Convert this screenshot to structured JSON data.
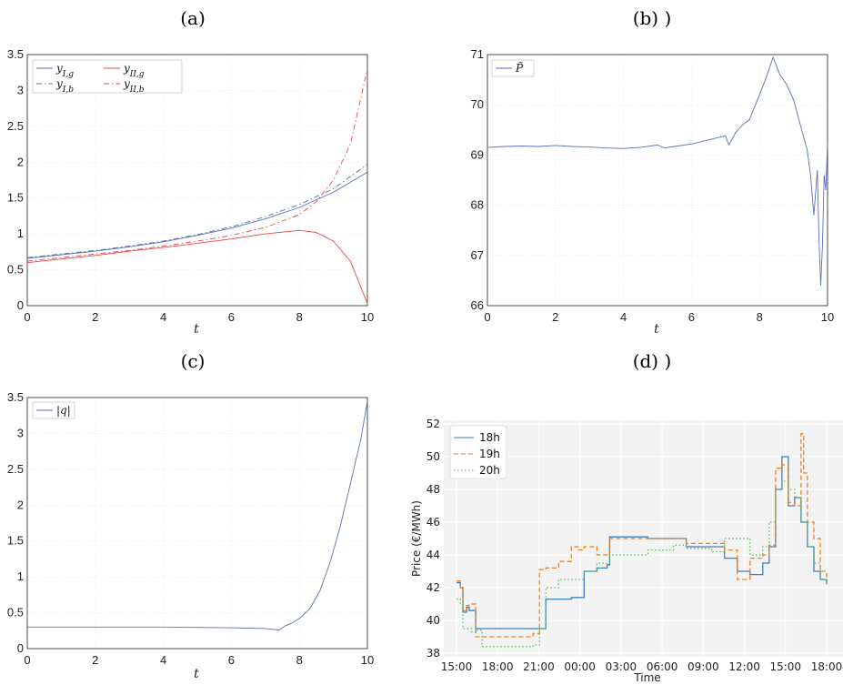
{
  "chart_data": [
    {
      "id": "a",
      "type": "line",
      "title": "(a)",
      "xlabel": "t",
      "ylabel": "",
      "xlim": [
        0,
        10
      ],
      "ylim": [
        0,
        3.5
      ],
      "xticks": [
        "0",
        "2",
        "4",
        "6",
        "8",
        "10"
      ],
      "yticks": [
        "0",
        "0.5",
        "1",
        "1.5",
        "2",
        "2.5",
        "3",
        "3.5"
      ],
      "grid": true,
      "legend_position": "top-left",
      "series": [
        {
          "name": "y_{I,g}",
          "color": "#5b6fb5",
          "dash": "solid",
          "x": [
            0,
            1,
            2,
            3,
            4,
            5,
            6,
            7,
            8,
            9,
            10
          ],
          "y": [
            0.66,
            0.71,
            0.76,
            0.82,
            0.89,
            0.98,
            1.08,
            1.21,
            1.37,
            1.58,
            1.86
          ]
        },
        {
          "name": "y_{II,g}",
          "color": "#e8474a",
          "dash": "solid",
          "x": [
            0,
            1,
            2,
            3,
            4,
            5,
            6,
            7,
            8,
            8.5,
            9,
            9.5,
            10
          ],
          "y": [
            0.6,
            0.65,
            0.7,
            0.76,
            0.81,
            0.87,
            0.93,
            1.0,
            1.05,
            1.02,
            0.9,
            0.62,
            0.03
          ]
        },
        {
          "name": "y_{I,b}",
          "color": "#5b6fb5",
          "dash": "dashdot",
          "x": [
            0,
            1,
            2,
            3,
            4,
            5,
            6,
            7,
            8,
            9,
            10
          ],
          "y": [
            0.67,
            0.72,
            0.77,
            0.83,
            0.9,
            0.99,
            1.1,
            1.24,
            1.41,
            1.63,
            1.97
          ]
        },
        {
          "name": "y_{II,b}",
          "color": "#e8474a",
          "dash": "dashdot",
          "x": [
            0,
            1,
            2,
            3,
            4,
            5,
            6,
            7,
            8,
            8.5,
            9,
            9.5,
            10
          ],
          "y": [
            0.62,
            0.67,
            0.72,
            0.77,
            0.83,
            0.9,
            0.98,
            1.09,
            1.27,
            1.45,
            1.75,
            2.25,
            3.3
          ]
        }
      ]
    },
    {
      "id": "b",
      "type": "line",
      "title": "(b) )",
      "xlabel": "t",
      "ylabel": "",
      "xlim": [
        0,
        10
      ],
      "ylim": [
        66,
        71
      ],
      "xticks": [
        "0",
        "2",
        "4",
        "6",
        "8",
        "10"
      ],
      "yticks": [
        "66",
        "67",
        "68",
        "69",
        "70",
        "71"
      ],
      "grid": true,
      "legend_position": "top-left",
      "series": [
        {
          "name": "P̃",
          "color": "#5b6fb5",
          "dash": "solid",
          "x": [
            0,
            0.5,
            1,
            1.5,
            2,
            2.5,
            3,
            3.5,
            4,
            4.5,
            5,
            5.2,
            5.5,
            6,
            6.5,
            6.8,
            7,
            7.1,
            7.3,
            7.5,
            7.7,
            8,
            8.2,
            8.4,
            8.6,
            8.8,
            9,
            9.2,
            9.4,
            9.5,
            9.6,
            9.7,
            9.75,
            9.8,
            9.85,
            9.9,
            9.95,
            10
          ],
          "y": [
            69.15,
            69.17,
            69.18,
            69.17,
            69.19,
            69.17,
            69.16,
            69.14,
            69.13,
            69.15,
            69.2,
            69.14,
            69.17,
            69.22,
            69.3,
            69.35,
            69.38,
            69.2,
            69.45,
            69.6,
            69.7,
            70.2,
            70.55,
            70.95,
            70.6,
            70.4,
            70.1,
            69.6,
            69.1,
            68.6,
            67.8,
            68.7,
            67.3,
            66.4,
            67.2,
            68.6,
            68.3,
            69.25
          ]
        }
      ]
    },
    {
      "id": "c",
      "type": "line",
      "title": "(c)",
      "xlabel": "t",
      "ylabel": "",
      "xlim": [
        0,
        10
      ],
      "ylim": [
        0,
        3.5
      ],
      "xticks": [
        "0",
        "2",
        "4",
        "6",
        "8",
        "10"
      ],
      "yticks": [
        "0",
        "0.5",
        "1",
        "1.5",
        "2",
        "2.5",
        "3",
        "3.5"
      ],
      "grid": true,
      "legend_position": "top-left",
      "series": [
        {
          "name": "|q|",
          "color": "#5b6fb5",
          "dash": "solid",
          "x": [
            0,
            1,
            2,
            3,
            4,
            5,
            6,
            6.5,
            7,
            7.4,
            7.6,
            7.8,
            8,
            8.3,
            8.6,
            8.9,
            9.2,
            9.5,
            9.8,
            10
          ],
          "y": [
            0.3,
            0.3,
            0.3,
            0.3,
            0.3,
            0.295,
            0.29,
            0.285,
            0.28,
            0.26,
            0.32,
            0.36,
            0.42,
            0.55,
            0.8,
            1.2,
            1.7,
            2.3,
            2.9,
            3.45
          ]
        }
      ]
    },
    {
      "id": "d",
      "type": "line",
      "title": "(d) )",
      "xlabel": "Time",
      "ylabel": "Price (€/MWh)",
      "xlim": [
        0,
        29
      ],
      "ylim": [
        38,
        52
      ],
      "xticks": [
        "15:00",
        "18:00",
        "21:00",
        "00:00",
        "03:00",
        "06:00",
        "09:00",
        "12:00",
        "15:00",
        "18:00"
      ],
      "yticks": [
        "38",
        "40",
        "42",
        "44",
        "46",
        "48",
        "50",
        "52"
      ],
      "grid": true,
      "legend_position": "top-left",
      "series": [
        {
          "name": "18h",
          "color": "#3f7fbf",
          "dash": "solid",
          "x": [
            0,
            0.3,
            0.5,
            0.8,
            1,
            1.5,
            2,
            3,
            6,
            6.1,
            7,
            9,
            10,
            11,
            11.8,
            12,
            15,
            18,
            21,
            22,
            23,
            24,
            24.5,
            25,
            25.5,
            26,
            26.5,
            27,
            27.5,
            28,
            28.5,
            29
          ],
          "y": [
            42.3,
            42.0,
            40.5,
            40.8,
            40.6,
            39.5,
            39.5,
            39.5,
            39.5,
            39.5,
            41.3,
            41.4,
            43.0,
            43.2,
            43.4,
            45.1,
            45.0,
            44.5,
            43.8,
            43.0,
            42.8,
            43.5,
            44.5,
            48.0,
            50.0,
            47.0,
            47.5,
            46.0,
            44.5,
            43.0,
            42.5,
            42.2
          ]
        },
        {
          "name": "19h",
          "color": "#ef7f1a",
          "dash": "dashed",
          "x": [
            0,
            0.3,
            0.5,
            0.8,
            1,
            1.5,
            2,
            3,
            6,
            6.5,
            7,
            8,
            9,
            9.5,
            10,
            11,
            12,
            15,
            18,
            21,
            22,
            23,
            24,
            24.5,
            25,
            25.5,
            26,
            26.5,
            27,
            27.2,
            27.5,
            28,
            28.5,
            29
          ],
          "y": [
            42.4,
            42.0,
            40.6,
            40.9,
            41.0,
            39.0,
            39.0,
            39.0,
            39.2,
            43.1,
            43.2,
            43.6,
            44.5,
            44.3,
            44.5,
            44.0,
            45.0,
            45.0,
            44.7,
            44.3,
            42.5,
            43.8,
            44.0,
            44.6,
            49.3,
            49.5,
            47.2,
            47.0,
            51.4,
            49.0,
            46.0,
            45.0,
            43.0,
            42.5
          ]
        },
        {
          "name": "20h",
          "color": "#5cb85c",
          "dash": "dotted",
          "x": [
            0,
            0.3,
            0.5,
            1,
            1.2,
            1.5,
            2,
            3,
            6,
            6.1,
            6.5,
            7,
            8,
            10,
            11,
            12,
            15,
            17,
            18,
            20,
            21,
            22,
            23,
            24,
            24.5,
            25,
            25.5,
            26,
            26.5,
            27,
            27.5,
            28,
            28.5,
            29
          ],
          "y": [
            41.3,
            41.0,
            39.5,
            39.5,
            39.3,
            39.4,
            38.4,
            38.4,
            38.5,
            38.5,
            39.5,
            42.0,
            42.5,
            43.0,
            43.5,
            44.0,
            44.3,
            44.6,
            44.4,
            44.2,
            45.0,
            45.0,
            44.0,
            44.5,
            46.0,
            48.0,
            48.5,
            48.0,
            47.5,
            46.0,
            44.5,
            43.5,
            42.5,
            42.2
          ]
        }
      ]
    }
  ]
}
